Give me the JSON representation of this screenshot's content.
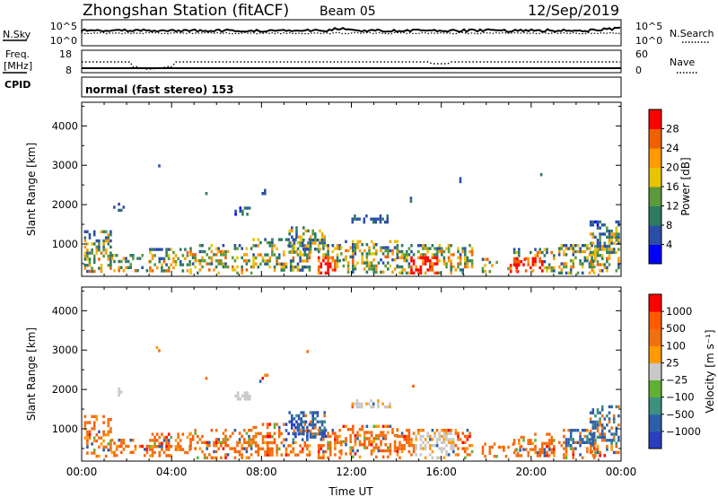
{
  "header": {
    "station": "Zhongshan Station (fitACF)",
    "beam": "Beam 05",
    "date": "12/Sep/2019"
  },
  "top_panels": {
    "nsky_label": "N.Sky",
    "nsky_ticks": [
      "10^5",
      "10^0"
    ],
    "nsearch_label": "N.Search",
    "nsearch_ticks": [
      "10^5",
      "10^0"
    ],
    "freq_label": "Freq.",
    "freq_unit": "[MHz]",
    "freq_ticks": [
      "18",
      "8"
    ],
    "nave_label": "Nave",
    "nave_ticks": [
      "60",
      "0"
    ],
    "cpid_label": "CPID",
    "cpid_value": "normal (fast stereo) 153"
  },
  "colors": {
    "power": [
      "#0000ff",
      "#2a4ea6",
      "#2e7b5f",
      "#5a9a3a",
      "#e8c400",
      "#ff9a00",
      "#f06000",
      "#ff0000"
    ],
    "velocity": [
      "#2a3ec0",
      "#2d5fa8",
      "#3d8f80",
      "#60b035",
      "#c8c8c8",
      "#ff9a00",
      "#f07010",
      "#ff5a00",
      "#ff0000"
    ]
  },
  "chart_data": [
    {
      "type": "heatmap",
      "name": "power-panel",
      "ylabel": "Slant Range [km]",
      "xlabel": "Time UT",
      "ylim": [
        180,
        4600
      ],
      "yticks": [
        "1000",
        "2000",
        "3000",
        "4000"
      ],
      "xticks": [
        "00:00",
        "04:00",
        "08:00",
        "12:00",
        "16:00",
        "20:00",
        "00:00"
      ],
      "colorbar_label": "Power [dB]",
      "colorbar_ticks": [
        "28",
        "24",
        "20",
        "16",
        "12",
        "8",
        "4"
      ],
      "clim": [
        0,
        32
      ]
    },
    {
      "type": "heatmap",
      "name": "velocity-panel",
      "ylabel": "Slant Range [km]",
      "xlabel": "Time UT",
      "ylim": [
        180,
        4600
      ],
      "yticks": [
        "1000",
        "2000",
        "3000",
        "4000"
      ],
      "xticks": [
        "00:00",
        "04:00",
        "08:00",
        "12:00",
        "16:00",
        "20:00",
        "00:00"
      ],
      "colorbar_label": "Velocity [m s⁻¹]",
      "colorbar_ticks": [
        "1000",
        "500",
        "100",
        "25",
        "−25",
        "−100",
        "−500",
        "−1000"
      ]
    }
  ]
}
